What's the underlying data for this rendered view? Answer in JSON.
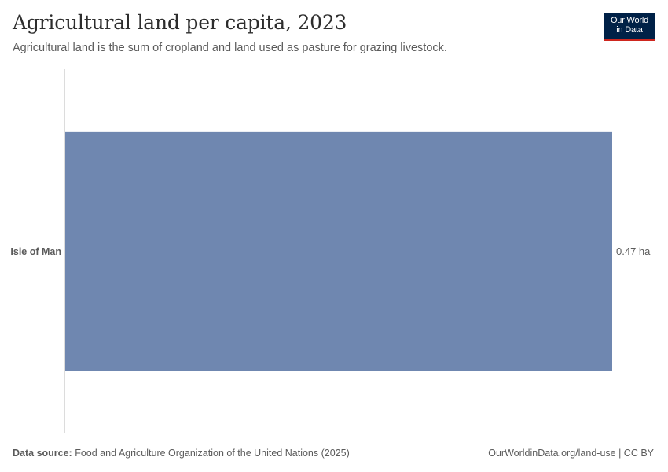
{
  "header": {
    "title": "Agricultural land per capita, 2023",
    "subtitle": "Agricultural land is the sum of cropland and land used as pasture for grazing livestock."
  },
  "logo": {
    "line1": "Our World",
    "line2": "in Data",
    "background_color": "#002147",
    "accent_color": "#ce261e"
  },
  "chart_data": {
    "type": "bar",
    "orientation": "horizontal",
    "categories": [
      "Isle of Man"
    ],
    "values": [
      0.47
    ],
    "value_labels": [
      "0.47 ha"
    ],
    "unit": "ha",
    "xlim": [
      0,
      0.47
    ],
    "bar_color": "#6f87b0",
    "grid": false
  },
  "footer": {
    "source_label": "Data source:",
    "source_text": "Food and Agriculture Organization of the United Nations (2025)",
    "url_text": "OurWorldinData.org/land-use | CC BY"
  }
}
